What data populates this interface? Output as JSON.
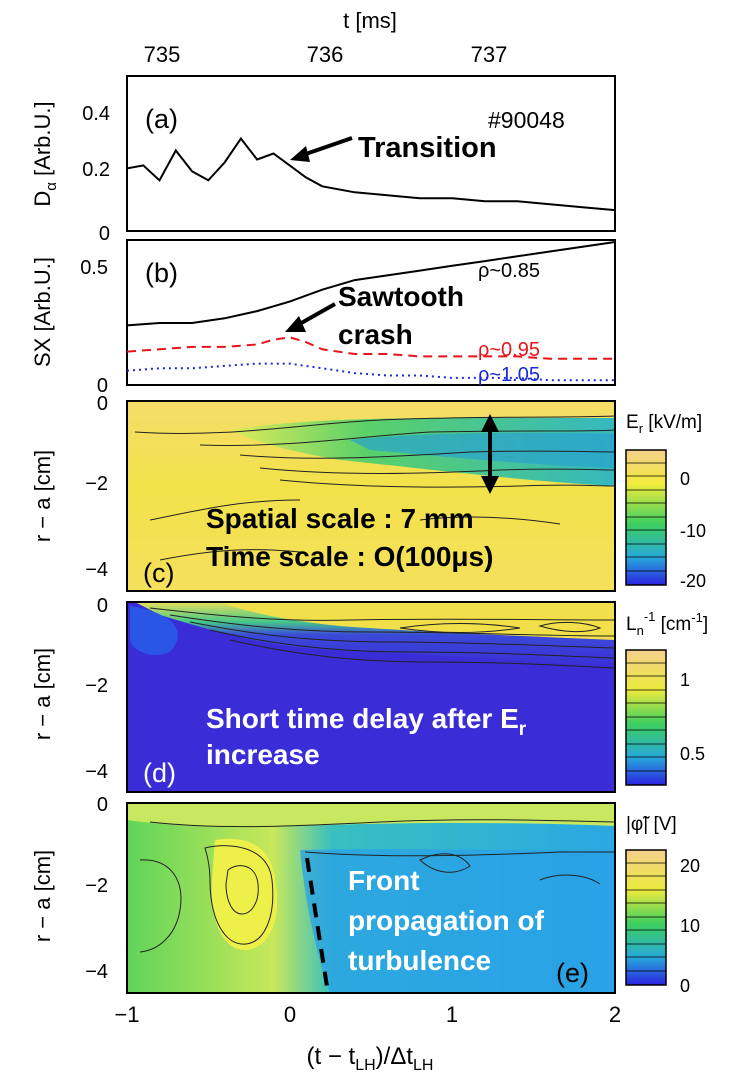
{
  "figure": {
    "top_axis_title": "t [ms]",
    "top_ticks": [
      "735",
      "736",
      "737"
    ],
    "bottom_ticks": [
      "−1",
      "0",
      "1",
      "2"
    ],
    "bottom_label": "(t − t",
    "bottom_label_sub1": "LH",
    "bottom_label_mid": ")/Δt",
    "bottom_label_sub2": "LH"
  },
  "chart_data": [
    {
      "type": "line",
      "panel": "(a)",
      "ylabel": "D",
      "ylabel_sub": "α",
      "ylabel_rest": " [Arb.U.]",
      "ylim": [
        0,
        0.5
      ],
      "yticks": [
        "0",
        "0.2",
        "0.4"
      ],
      "shot": "#90048",
      "annotation": "Transition",
      "x": [
        -1.0,
        -0.9,
        -0.8,
        -0.7,
        -0.6,
        -0.5,
        -0.4,
        -0.3,
        -0.2,
        -0.1,
        0.0,
        0.1,
        0.2,
        0.4,
        0.6,
        0.8,
        1.0,
        1.2,
        1.4,
        1.6,
        1.8,
        2.0
      ],
      "y": [
        0.21,
        0.22,
        0.17,
        0.27,
        0.2,
        0.17,
        0.23,
        0.31,
        0.24,
        0.26,
        0.22,
        0.18,
        0.15,
        0.13,
        0.12,
        0.11,
        0.11,
        0.1,
        0.1,
        0.09,
        0.08,
        0.07
      ],
      "color": "#000000"
    },
    {
      "type": "line",
      "panel": "(b)",
      "ylabel": "SX [Arb.U.]",
      "ylim": [
        0,
        0.6
      ],
      "yticks": [
        "0",
        "0.5"
      ],
      "annotation_line1": "Sawtooth",
      "annotation_line2": "crash",
      "series": [
        {
          "name": "ρ~0.85",
          "color": "#000000",
          "dash": "",
          "x": [
            -1.0,
            -0.8,
            -0.6,
            -0.4,
            -0.2,
            0.0,
            0.2,
            0.4,
            0.6,
            0.8,
            1.0,
            1.2,
            1.4,
            1.6,
            1.8,
            2.0
          ],
          "y": [
            0.25,
            0.26,
            0.26,
            0.28,
            0.31,
            0.35,
            0.4,
            0.44,
            0.46,
            0.48,
            0.5,
            0.52,
            0.54,
            0.56,
            0.58,
            0.6
          ]
        },
        {
          "name": "ρ~0.95",
          "color": "#e8141c",
          "dash": "9,6",
          "x": [
            -1.0,
            -0.8,
            -0.6,
            -0.4,
            -0.2,
            -0.1,
            0.0,
            0.1,
            0.2,
            0.4,
            0.6,
            0.8,
            1.0,
            1.2,
            1.4,
            1.6,
            1.8,
            2.0
          ],
          "y": [
            0.14,
            0.15,
            0.16,
            0.16,
            0.17,
            0.19,
            0.2,
            0.18,
            0.15,
            0.13,
            0.13,
            0.12,
            0.12,
            0.12,
            0.12,
            0.11,
            0.11,
            0.11
          ]
        },
        {
          "name": "ρ~1.05",
          "color": "#1a2ad8",
          "dash": "2,4",
          "x": [
            -1.0,
            -0.8,
            -0.6,
            -0.4,
            -0.2,
            0.0,
            0.2,
            0.4,
            0.6,
            0.8,
            1.0,
            1.2,
            1.4,
            1.6,
            1.8,
            2.0
          ],
          "y": [
            0.06,
            0.07,
            0.07,
            0.08,
            0.09,
            0.09,
            0.07,
            0.05,
            0.04,
            0.04,
            0.03,
            0.03,
            0.03,
            0.02,
            0.02,
            0.02
          ]
        }
      ]
    },
    {
      "type": "heatmap",
      "panel": "(c)",
      "ylabel": "r − a [cm]",
      "yticks": [
        "0",
        "−2",
        "−4"
      ],
      "colorbar_title": "E",
      "colorbar_sub": "r",
      "colorbar_unit": " [kV/m]",
      "colorbar_ticks": [
        "0",
        "-10",
        "-20"
      ],
      "annotation_line1": "Spatial scale : 7 mm",
      "annotation_line2": "Time scale : O(100μs)"
    },
    {
      "type": "heatmap",
      "panel": "(d)",
      "ylabel": "r − a [cm]",
      "yticks": [
        "0",
        "−2",
        "−4"
      ],
      "colorbar_title": "L",
      "colorbar_sub": "n",
      "colorbar_sup": "-1",
      "colorbar_unit": "  [cm",
      "colorbar_unit_sup": "-1",
      "colorbar_unit_end": "]",
      "colorbar_ticks": [
        "1",
        "0.5"
      ],
      "annotation_line1": "Short time delay after E",
      "annotation_line1_sub": "r",
      "annotation_line2": "increase"
    },
    {
      "type": "heatmap",
      "panel": "(e)",
      "ylabel": "r − a [cm]",
      "yticks": [
        "0",
        "−2",
        "−4"
      ],
      "colorbar_title": "|φ̃|",
      "colorbar_unit": " [V]",
      "colorbar_ticks": [
        "20",
        "10",
        "0"
      ],
      "annotation_line1": "Front",
      "annotation_line2": "propagation of",
      "annotation_line3": "turbulence"
    }
  ]
}
